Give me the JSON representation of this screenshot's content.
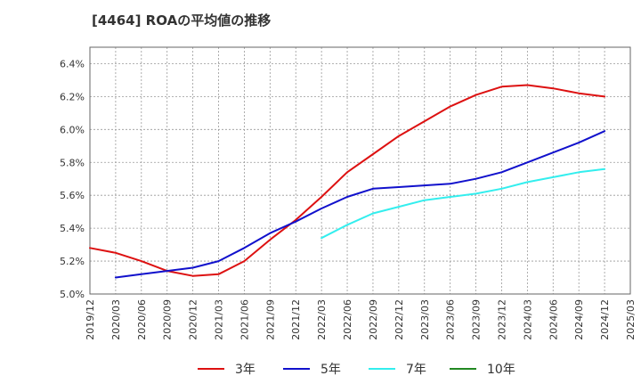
{
  "chart_data": {
    "type": "line",
    "title": "[4464]  ROAの平均値の推移",
    "xlabel": "",
    "ylabel": "",
    "x_tick_labels": [
      "2019/12",
      "2020/03",
      "2020/06",
      "2020/09",
      "2020/12",
      "2021/03",
      "2021/06",
      "2021/09",
      "2021/12",
      "2022/03",
      "2022/06",
      "2022/09",
      "2022/12",
      "2023/03",
      "2023/06",
      "2023/09",
      "2023/12",
      "2024/03",
      "2024/06",
      "2024/09",
      "2024/12",
      "2025/03"
    ],
    "y_tick_labels": [
      "5.0%",
      "5.2%",
      "5.4%",
      "5.6%",
      "5.8%",
      "6.0%",
      "6.2%",
      "6.4%"
    ],
    "ylim": [
      5.0,
      6.5
    ],
    "grid": true,
    "legend_position": "bottom",
    "series": [
      {
        "name": "3年",
        "color": "#dd1111",
        "x": [
          "2019/12",
          "2020/03",
          "2020/06",
          "2020/09",
          "2020/12",
          "2021/03",
          "2021/06",
          "2021/09",
          "2021/12",
          "2022/03",
          "2022/06",
          "2022/09",
          "2022/12",
          "2023/03",
          "2023/06",
          "2023/09",
          "2023/12",
          "2024/03",
          "2024/06",
          "2024/09",
          "2024/12"
        ],
        "values": [
          5.28,
          5.25,
          5.2,
          5.14,
          5.11,
          5.12,
          5.2,
          5.33,
          5.45,
          5.59,
          5.74,
          5.85,
          5.96,
          6.05,
          6.14,
          6.21,
          6.26,
          6.27,
          6.25,
          6.22,
          6.2
        ]
      },
      {
        "name": "5年",
        "color": "#1111cc",
        "x": [
          "2020/03",
          "2020/06",
          "2020/09",
          "2020/12",
          "2021/03",
          "2021/06",
          "2021/09",
          "2021/12",
          "2022/03",
          "2022/06",
          "2022/09",
          "2022/12",
          "2023/03",
          "2023/06",
          "2023/09",
          "2023/12",
          "2024/03",
          "2024/06",
          "2024/09",
          "2024/12"
        ],
        "values": [
          5.1,
          5.12,
          5.14,
          5.16,
          5.2,
          5.28,
          5.37,
          5.44,
          5.52,
          5.59,
          5.64,
          5.65,
          5.66,
          5.67,
          5.7,
          5.74,
          5.8,
          5.86,
          5.92,
          5.99
        ]
      },
      {
        "name": "7年",
        "color": "#33eeee",
        "x": [
          "2022/03",
          "2022/06",
          "2022/09",
          "2022/12",
          "2023/03",
          "2023/06",
          "2023/09",
          "2023/12",
          "2024/03",
          "2024/06",
          "2024/09",
          "2024/12"
        ],
        "values": [
          5.34,
          5.42,
          5.49,
          5.53,
          5.57,
          5.59,
          5.61,
          5.64,
          5.68,
          5.71,
          5.74,
          5.76
        ]
      },
      {
        "name": "10年",
        "color": "#228822",
        "x": [],
        "values": []
      }
    ]
  }
}
